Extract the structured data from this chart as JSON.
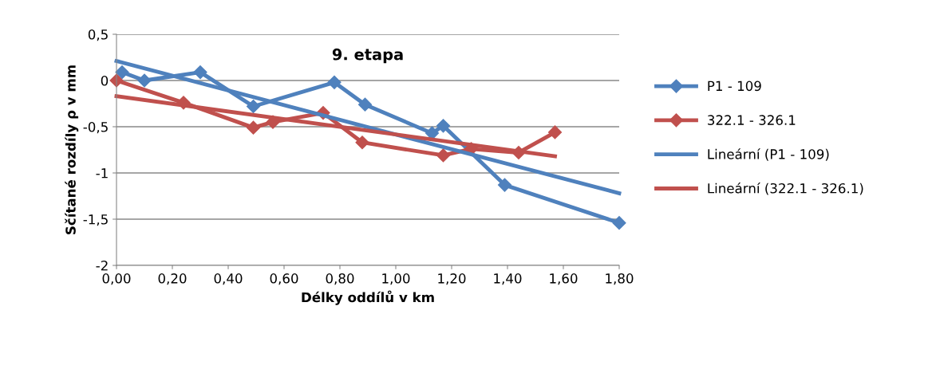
{
  "chart_data": {
    "type": "line",
    "title": "9. etapa",
    "xlabel": "Délky oddílů v km",
    "ylabel": "Sčítané rozdíly ρ v mm",
    "xlim": [
      0,
      1.8
    ],
    "ylim": [
      -2,
      0.5
    ],
    "xticks": [
      {
        "value": 0,
        "label": "0,00"
      },
      {
        "value": 0.2,
        "label": "0,20"
      },
      {
        "value": 0.4,
        "label": "0,40"
      },
      {
        "value": 0.6,
        "label": "0,60"
      },
      {
        "value": 0.8,
        "label": "0,80"
      },
      {
        "value": 1.0,
        "label": "1,00"
      },
      {
        "value": 1.2,
        "label": "1,20"
      },
      {
        "value": 1.4,
        "label": "1,40"
      },
      {
        "value": 1.6,
        "label": "1,60"
      },
      {
        "value": 1.8,
        "label": "1,80"
      }
    ],
    "yticks": [
      {
        "value": -2,
        "label": "-2"
      },
      {
        "value": -1.5,
        "label": "-1,5"
      },
      {
        "value": -1,
        "label": "-1"
      },
      {
        "value": -0.5,
        "label": "-0,5"
      },
      {
        "value": 0,
        "label": "0"
      },
      {
        "value": 0.5,
        "label": "0,5"
      }
    ],
    "grid": "y",
    "legend": "right",
    "series": [
      {
        "name": "P1 - 109",
        "color": "#4f81bd",
        "marker": "diamond",
        "x": [
          0.02,
          0.1,
          0.3,
          0.49,
          0.78,
          0.89,
          1.13,
          1.17,
          1.39,
          1.8
        ],
        "values": [
          0.09,
          0.0,
          0.09,
          -0.28,
          -0.02,
          -0.26,
          -0.57,
          -0.49,
          -1.13,
          -1.54
        ]
      },
      {
        "name": "322.1 - 326.1",
        "color": "#c0504d",
        "marker": "diamond",
        "x": [
          0.0,
          0.24,
          0.49,
          0.56,
          0.74,
          0.88,
          1.17,
          1.27,
          1.44,
          1.57
        ],
        "values": [
          0.0,
          -0.24,
          -0.51,
          -0.45,
          -0.35,
          -0.67,
          -0.81,
          -0.74,
          -0.78,
          -0.56
        ]
      },
      {
        "name": "Lineární (P1 - 109)",
        "color": "#4f81bd",
        "marker": "none",
        "x": [
          0.0,
          1.8
        ],
        "values": [
          0.21,
          -1.22
        ]
      },
      {
        "name": "Lineární (322.1 - 326.1)",
        "color": "#c0504d",
        "marker": "none",
        "x": [
          0.0,
          1.57
        ],
        "values": [
          -0.17,
          -0.82
        ]
      }
    ]
  }
}
